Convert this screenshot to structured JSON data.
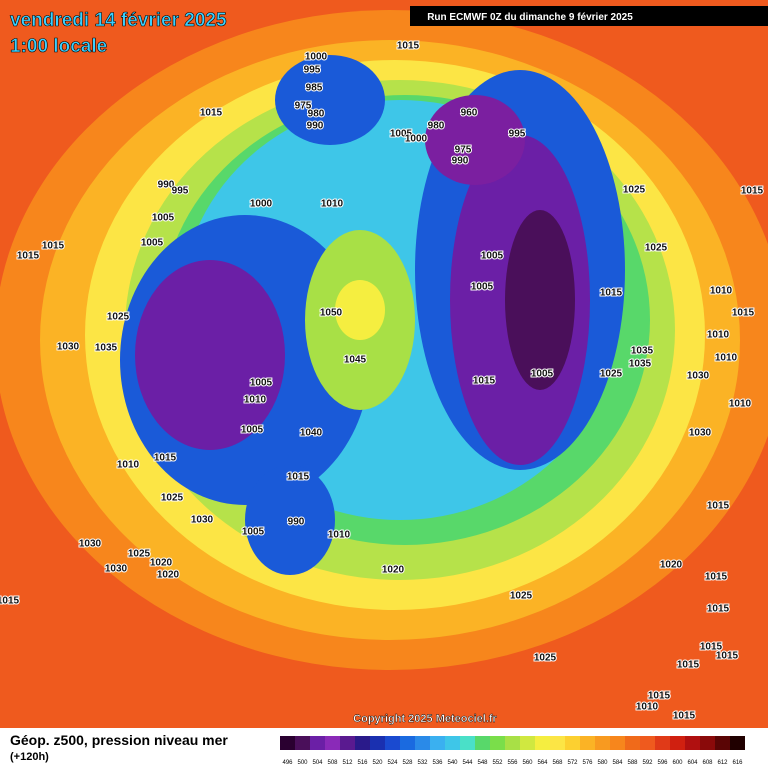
{
  "header": {
    "date": "vendredi 14 février 2025",
    "time": "1:00 locale",
    "run": "Run ECMWF 0Z du dimanche 9 février 2025"
  },
  "map": {
    "copyright": "Copyright 2025 Meteociel.fr",
    "isobar_labels": [
      "1015",
      "1000",
      "995",
      "985",
      "975",
      "980",
      "990",
      "1015",
      "960",
      "980",
      "1005",
      "1000",
      "995",
      "975",
      "990",
      "990",
      "995",
      "1000",
      "1010",
      "1025",
      "1015",
      "1005",
      "1005",
      "1015",
      "1015",
      "1025",
      "1005",
      "1005",
      "1015",
      "1010",
      "1025",
      "1050",
      "1015",
      "1030",
      "1035",
      "1035",
      "1035",
      "1010",
      "1010",
      "1045",
      "1005",
      "1015",
      "1005",
      "1025",
      "1030",
      "1010",
      "1010",
      "1040",
      "1005",
      "1030",
      "1010",
      "1015",
      "1015",
      "1025",
      "1015",
      "1030",
      "990",
      "1005",
      "1010",
      "1030",
      "1025",
      "1020",
      "1030",
      "1020",
      "1020",
      "1020",
      "1015",
      "1025",
      "1015",
      "1015",
      "1025",
      "1015",
      "1015",
      "1015",
      "1015",
      "1010",
      "1015"
    ]
  },
  "footer": {
    "title": "Géop. z500, pression niveau mer",
    "lead": "(+120h)",
    "scale": [
      "496",
      "500",
      "504",
      "508",
      "512",
      "516",
      "520",
      "524",
      "528",
      "532",
      "536",
      "540",
      "544",
      "548",
      "552",
      "556",
      "560",
      "564",
      "568",
      "572",
      "576",
      "580",
      "584",
      "588",
      "592",
      "596",
      "600",
      "604",
      "608",
      "612",
      "616"
    ]
  }
}
